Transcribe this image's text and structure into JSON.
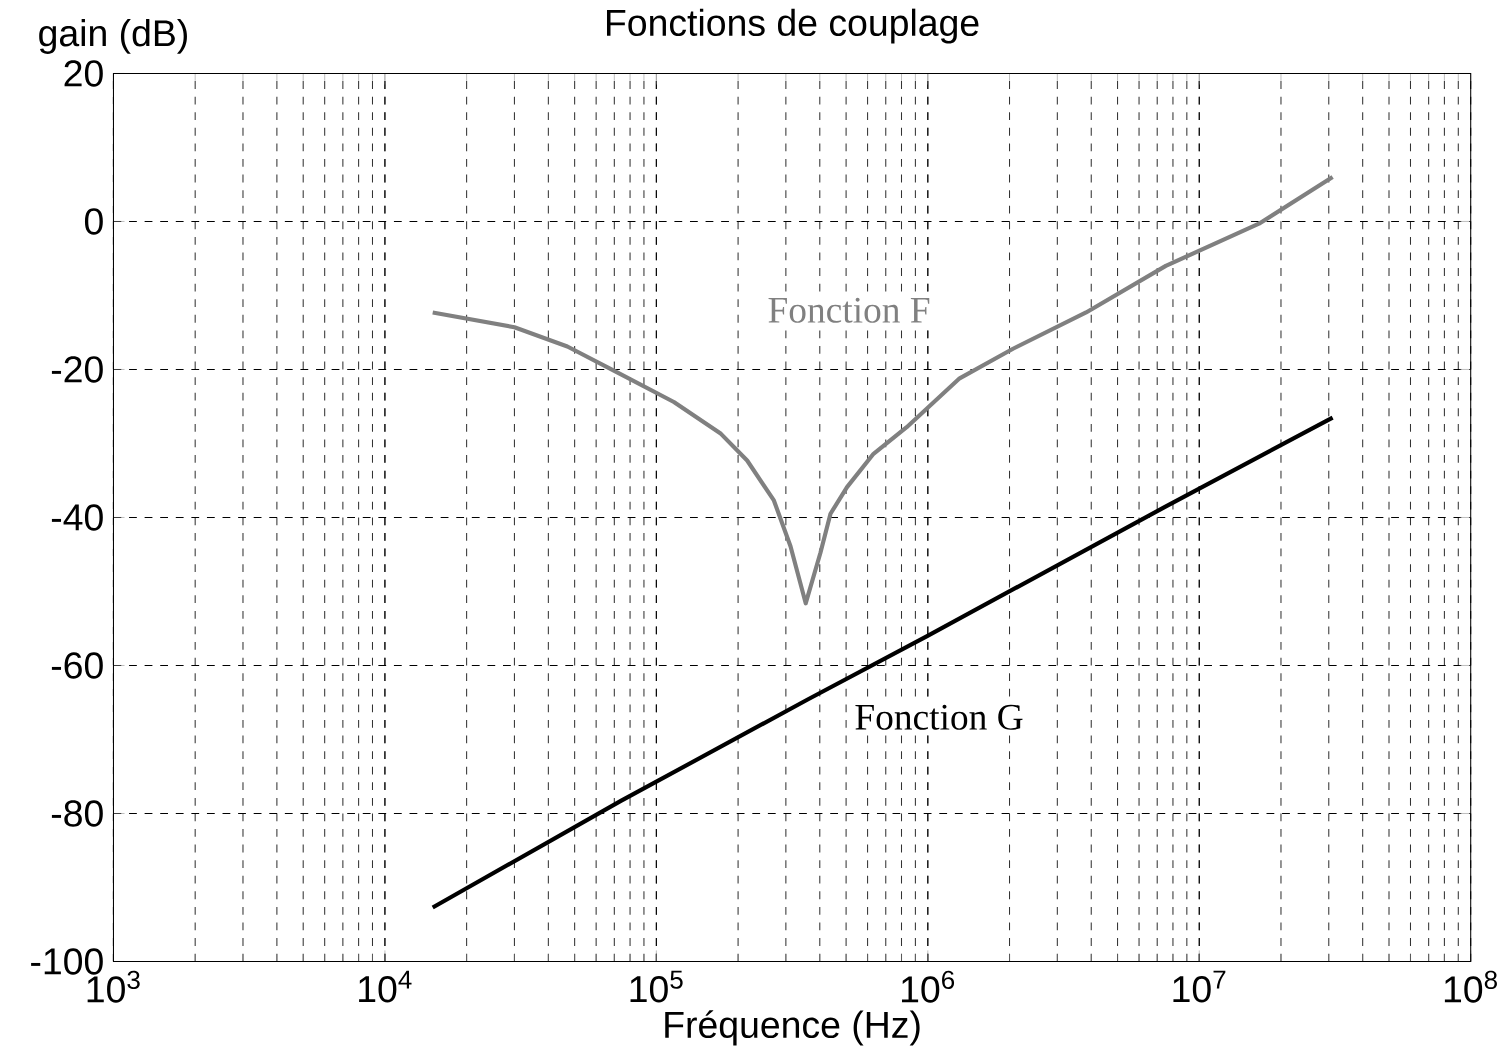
{
  "chart_data": {
    "type": "line",
    "title": "Fonctions de couplage",
    "xlabel": "Fréquence (Hz)",
    "ylabel": "gain (dB)",
    "log": "x",
    "grid": true,
    "xlim": [
      1000,
      100000000
    ],
    "ylim": [
      -100,
      20
    ],
    "xticks": [
      {
        "value": 1000,
        "label": "10$^{3}$"
      },
      {
        "value": 10000,
        "label": "10$^{4}$"
      },
      {
        "value": 100000,
        "label": "10$^{5}$"
      },
      {
        "value": 1000000,
        "label": "10$^{6}$"
      },
      {
        "value": 10000000,
        "label": "10$^{7}$"
      },
      {
        "value": 100000000,
        "label": "10$^{8}$"
      }
    ],
    "yticks": [
      -100,
      -80,
      -60,
      -40,
      -20,
      0,
      20
    ],
    "series": [
      {
        "name": "Fonction F",
        "color": "#808080",
        "x": [
          15000,
          30000,
          47000,
          70000,
          116000,
          173000,
          216000,
          271000,
          312000,
          355000,
          402000,
          438000,
          504000,
          631000,
          836000,
          1310000,
          2060000,
          3830000,
          7530000,
          16600000,
          31000000
        ],
        "values": [
          -12.3,
          -14.3,
          -16.9,
          -20.2,
          -24.4,
          -28.7,
          -32.3,
          -37.7,
          -43.9,
          -51.6,
          -44.8,
          -39.5,
          -35.9,
          -31.4,
          -27.8,
          -21.2,
          -17.2,
          -12.3,
          -6.0,
          -0.3,
          6.0
        ]
      },
      {
        "name": "Fonction G",
        "color": "#000000",
        "x": [
          15000,
          74000,
          361000,
          998000,
          7450000,
          31000000
        ],
        "values": [
          -92.7,
          -78.3,
          -64.6,
          -56.0,
          -38.6,
          -26.5
        ]
      }
    ]
  }
}
